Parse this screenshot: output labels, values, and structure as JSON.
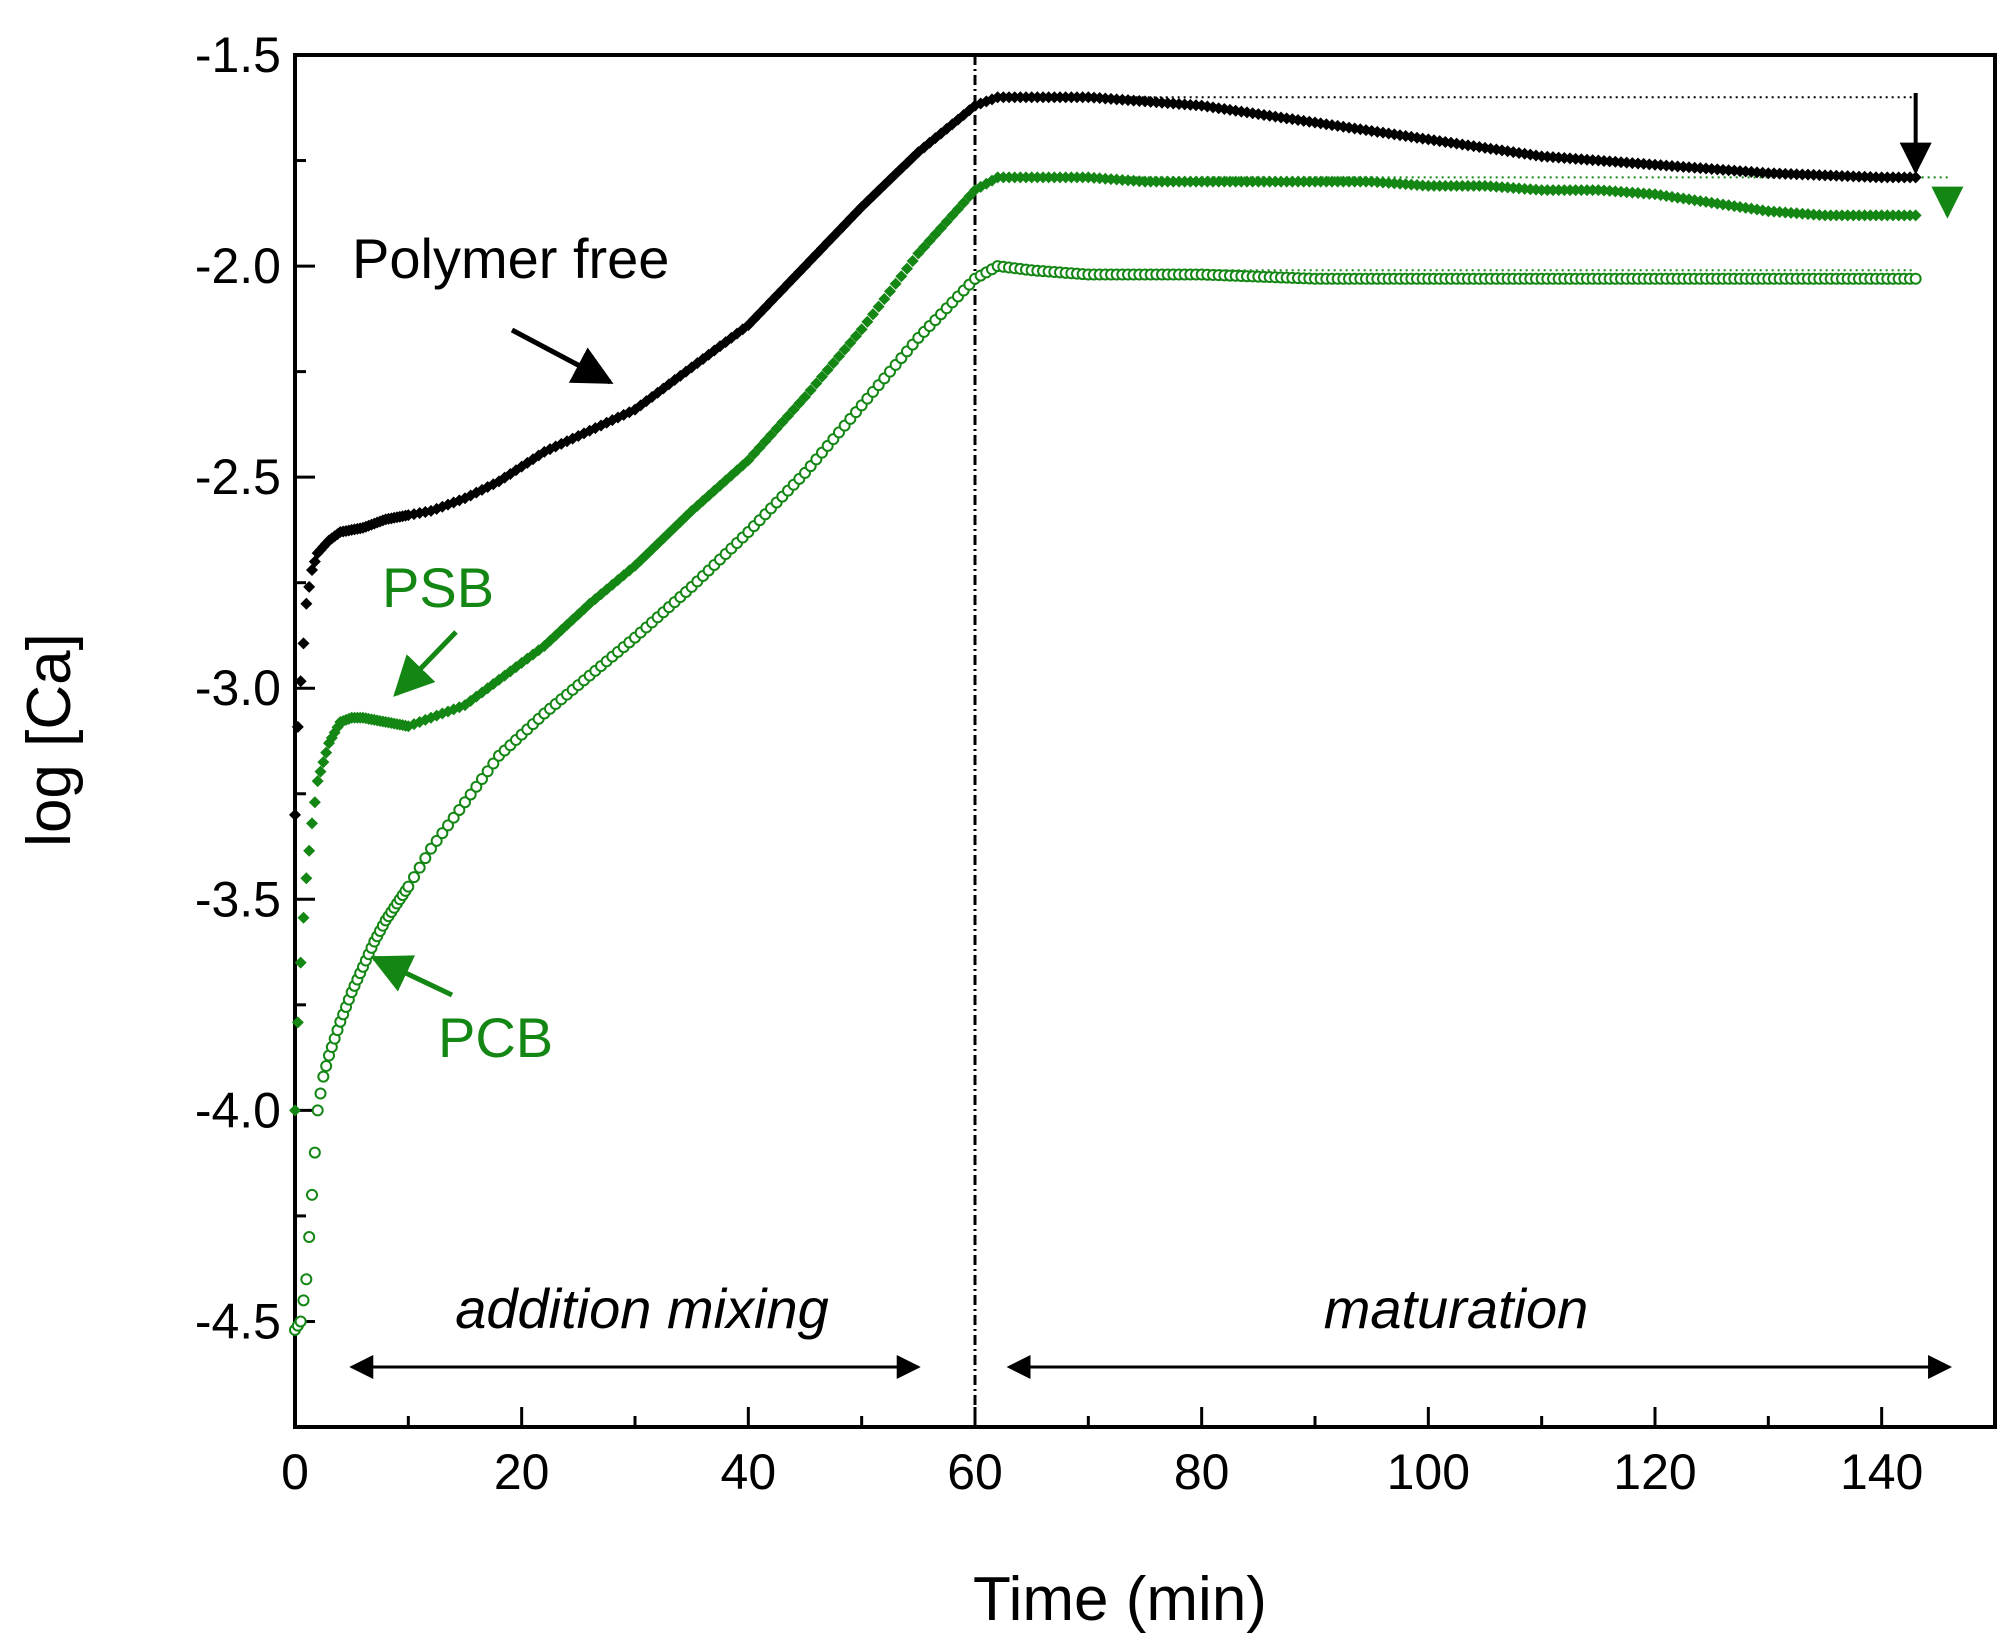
{
  "chart_data": {
    "type": "scatter",
    "xlabel": "Time (min)",
    "ylabel": "log [Ca]",
    "xlim": [
      0,
      150
    ],
    "ylim": [
      -4.75,
      -1.5
    ],
    "xticks": [
      0,
      20,
      40,
      60,
      80,
      100,
      120,
      140
    ],
    "xtick_labels": [
      "0",
      "20",
      "40",
      "60",
      "80",
      "100",
      "120",
      "140"
    ],
    "yticks": [
      -1.5,
      -2.0,
      -2.5,
      -3.0,
      -3.5,
      -4.0,
      -4.5
    ],
    "ytick_labels": [
      "-1.5",
      "-2.0",
      "-2.5",
      "-3.0",
      "-3.5",
      "-4.0",
      "-4.5"
    ],
    "grid": false,
    "colors": {
      "black": "#000000",
      "green": "#138613"
    },
    "series": [
      {
        "name": "Polymer free",
        "color": "#000000",
        "marker": "filled-diamond",
        "x": [
          0,
          0.3,
          0.6,
          1,
          1.5,
          2,
          3,
          4,
          6,
          8,
          10,
          12,
          15,
          18,
          22,
          26,
          30,
          35,
          40,
          45,
          50,
          55,
          60,
          62,
          65,
          70,
          75,
          80,
          85,
          90,
          95,
          100,
          105,
          110,
          115,
          120,
          125,
          130,
          135,
          140,
          143
        ],
        "y": [
          -3.3,
          -3.05,
          -2.95,
          -2.8,
          -2.72,
          -2.68,
          -2.65,
          -2.63,
          -2.62,
          -2.6,
          -2.59,
          -2.58,
          -2.55,
          -2.51,
          -2.44,
          -2.39,
          -2.34,
          -2.24,
          -2.14,
          -2.0,
          -1.86,
          -1.73,
          -1.62,
          -1.6,
          -1.6,
          -1.6,
          -1.61,
          -1.62,
          -1.64,
          -1.66,
          -1.68,
          -1.7,
          -1.72,
          -1.74,
          -1.75,
          -1.76,
          -1.77,
          -1.78,
          -1.785,
          -1.79,
          -1.79
        ]
      },
      {
        "name": "PSB",
        "color": "#138613",
        "marker": "filled-diamond",
        "x": [
          0,
          0.3,
          0.6,
          1,
          1.5,
          2,
          3,
          4,
          5,
          6,
          8,
          10,
          12,
          15,
          18,
          22,
          26,
          30,
          35,
          40,
          45,
          50,
          55,
          60,
          62,
          65,
          70,
          75,
          80,
          85,
          90,
          95,
          100,
          105,
          110,
          115,
          120,
          125,
          130,
          135,
          140,
          143
        ],
        "y": [
          -4.0,
          -3.75,
          -3.6,
          -3.45,
          -3.32,
          -3.22,
          -3.13,
          -3.08,
          -3.07,
          -3.07,
          -3.08,
          -3.09,
          -3.07,
          -3.04,
          -2.98,
          -2.9,
          -2.8,
          -2.71,
          -2.58,
          -2.46,
          -2.31,
          -2.15,
          -1.97,
          -1.82,
          -1.79,
          -1.79,
          -1.79,
          -1.8,
          -1.8,
          -1.8,
          -1.8,
          -1.8,
          -1.81,
          -1.81,
          -1.82,
          -1.82,
          -1.83,
          -1.85,
          -1.87,
          -1.88,
          -1.88,
          -1.88
        ]
      },
      {
        "name": "PCB",
        "color": "#138613",
        "marker": "open-circle",
        "x": [
          0,
          0.5,
          1,
          1.5,
          2,
          2.5,
          3,
          4,
          5,
          6,
          7,
          8,
          10,
          12,
          15,
          18,
          22,
          26,
          30,
          35,
          40,
          45,
          50,
          55,
          60,
          62,
          65,
          70,
          80,
          90,
          100,
          110,
          120,
          130,
          140,
          143
        ],
        "y": [
          -4.52,
          -4.5,
          -4.4,
          -4.2,
          -4.0,
          -3.92,
          -3.87,
          -3.79,
          -3.72,
          -3.66,
          -3.6,
          -3.55,
          -3.47,
          -3.38,
          -3.27,
          -3.16,
          -3.06,
          -2.97,
          -2.88,
          -2.76,
          -2.63,
          -2.49,
          -2.33,
          -2.17,
          -2.03,
          -2.0,
          -2.01,
          -2.02,
          -2.02,
          -2.03,
          -2.03,
          -2.03,
          -2.03,
          -2.03,
          -2.03,
          -2.03
        ]
      }
    ],
    "annotations": [
      {
        "text": "Polymer free",
        "color": "#000000"
      },
      {
        "text": "PSB",
        "color": "#138613"
      },
      {
        "text": "PCB",
        "color": "#138613"
      },
      {
        "text": "addition mixing",
        "style": "italic"
      },
      {
        "text": "maturation",
        "style": "italic"
      }
    ],
    "reference_lines": [
      {
        "type": "vertical",
        "x": 60,
        "style": "dash-dot"
      },
      {
        "type": "horizontal",
        "y": -1.6,
        "from_x": 62,
        "to_x": 143,
        "color": "#000000",
        "style": "dotted"
      },
      {
        "type": "horizontal",
        "y": -1.79,
        "from_x": 62,
        "to_x": 146,
        "color": "#138613",
        "style": "dotted"
      },
      {
        "type": "horizontal",
        "y": -2.01,
        "from_x": 62,
        "to_x": 143,
        "color": "#138613",
        "style": "dotted"
      }
    ],
    "phase_ranges": [
      {
        "label_index": 3,
        "from_x": 5,
        "to_x": 55
      },
      {
        "label_index": 4,
        "from_x": 63,
        "to_x": 146
      }
    ]
  }
}
